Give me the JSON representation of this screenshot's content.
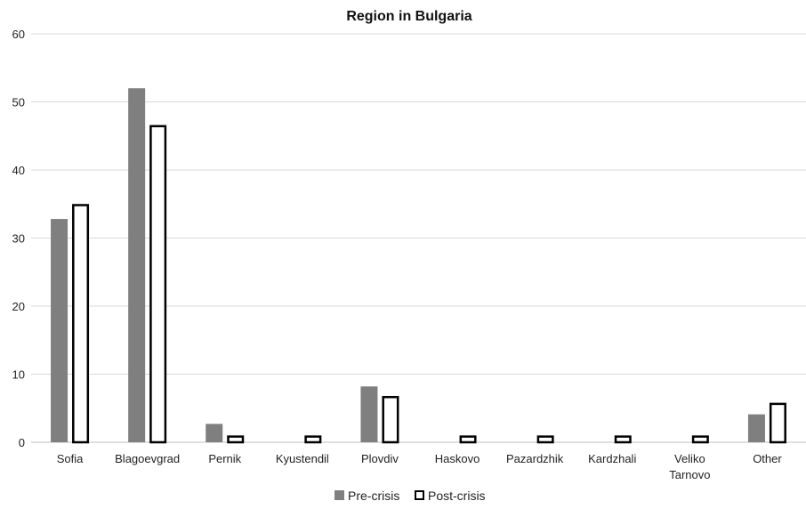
{
  "chart_data": {
    "type": "bar",
    "title": "Region in Bulgaria",
    "xlabel": "",
    "ylabel": "",
    "ylim": [
      0,
      60
    ],
    "yticks": [
      0,
      10,
      20,
      30,
      40,
      50,
      60
    ],
    "grid": true,
    "legend_position": "bottom",
    "categories": [
      [
        "Sofia"
      ],
      [
        "Blagoevgrad"
      ],
      [
        "Pernik"
      ],
      [
        "Kyustendil"
      ],
      [
        "Plovdiv"
      ],
      [
        "Haskovo"
      ],
      [
        "Pazardzhik"
      ],
      [
        "Kardzhali"
      ],
      [
        "Veliko",
        "Tarnovo"
      ],
      [
        "Other"
      ]
    ],
    "series": [
      {
        "name": "Pre-crisis",
        "color": "#7f7f7f",
        "style": "filled",
        "values": [
          32.8,
          52.0,
          2.7,
          0,
          8.2,
          0,
          0,
          0,
          0,
          4.1
        ]
      },
      {
        "name": "Post-crisis",
        "color": "#000000",
        "style": "outlined",
        "values": [
          35.0,
          46.6,
          1.0,
          1.0,
          6.8,
          1.0,
          1.0,
          1.0,
          1.0,
          5.8
        ]
      }
    ]
  }
}
